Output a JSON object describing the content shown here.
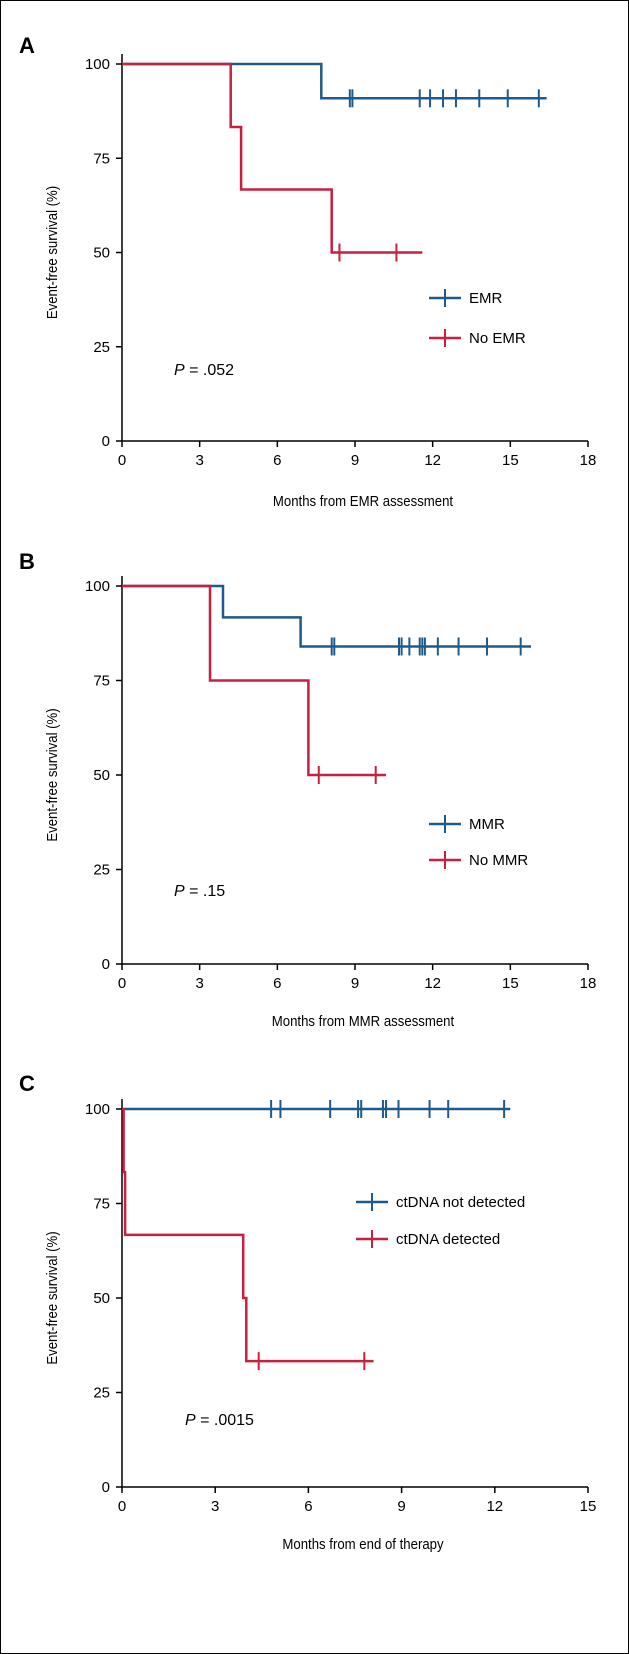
{
  "colors": {
    "blue": "#1f5a8c",
    "red": "#c8203f",
    "axis": "#000000"
  },
  "chart_data": [
    {
      "type": "line",
      "panel": "A",
      "xlabel": "Months from EMR assessment",
      "ylabel": "Event-free survival (%)",
      "xlim": [
        0,
        18
      ],
      "ylim": [
        0,
        100
      ],
      "xticks": [
        "0",
        "3",
        "6",
        "9",
        "12",
        "15",
        "18"
      ],
      "yticks": [
        "0",
        "25",
        "50",
        "75",
        "100"
      ],
      "pvalue": {
        "p": "P",
        "eq": "=",
        "value": ".052"
      },
      "legend_position": "center-right",
      "series": [
        {
          "name": "EMR",
          "color": "#1f5a8c",
          "steps": [
            [
              0,
              100
            ],
            [
              7.7,
              100
            ],
            [
              7.7,
              90.9
            ],
            [
              16.4,
              90.9
            ]
          ],
          "censors": [
            8.8,
            8.9,
            11.5,
            11.9,
            12.4,
            12.9,
            13.8,
            14.9,
            16.1
          ]
        },
        {
          "name": "No EMR",
          "color": "#c8203f",
          "steps": [
            [
              0,
              100
            ],
            [
              4.2,
              100
            ],
            [
              4.2,
              83.3
            ],
            [
              4.6,
              83.3
            ],
            [
              4.6,
              66.7
            ],
            [
              8.1,
              66.7
            ],
            [
              8.1,
              50
            ],
            [
              11.6,
              50
            ]
          ],
          "censors": [
            8.4,
            10.6
          ]
        }
      ]
    },
    {
      "type": "line",
      "panel": "B",
      "xlabel": "Months from MMR assessment",
      "ylabel": "Event-free survival (%)",
      "xlim": [
        0,
        18
      ],
      "ylim": [
        0,
        100
      ],
      "xticks": [
        "0",
        "3",
        "6",
        "9",
        "12",
        "15",
        "18"
      ],
      "yticks": [
        "0",
        "25",
        "50",
        "75",
        "100"
      ],
      "pvalue": {
        "p": "P",
        "eq": "=",
        "value": ".15"
      },
      "legend_position": "center-right",
      "series": [
        {
          "name": "MMR",
          "color": "#1f5a8c",
          "steps": [
            [
              0,
              100
            ],
            [
              3.9,
              100
            ],
            [
              3.9,
              91.7
            ],
            [
              6.9,
              91.7
            ],
            [
              6.9,
              84
            ],
            [
              15.8,
              84
            ]
          ],
          "censors": [
            8.1,
            8.2,
            10.7,
            10.8,
            11.1,
            11.5,
            11.6,
            11.7,
            12.2,
            13.0,
            14.1,
            15.4
          ]
        },
        {
          "name": "No MMR",
          "color": "#c8203f",
          "steps": [
            [
              0,
              100
            ],
            [
              3.4,
              100
            ],
            [
              3.4,
              75
            ],
            [
              7.2,
              75
            ],
            [
              7.2,
              50
            ],
            [
              10.2,
              50
            ]
          ],
          "censors": [
            7.6,
            9.8
          ]
        }
      ]
    },
    {
      "type": "line",
      "panel": "C",
      "xlabel": "Months from end of therapy",
      "ylabel": "Event-free survival (%)",
      "xlim": [
        0,
        15
      ],
      "ylim": [
        0,
        100
      ],
      "xticks": [
        "0",
        "3",
        "6",
        "9",
        "12",
        "15"
      ],
      "yticks": [
        "0",
        "25",
        "50",
        "75",
        "100"
      ],
      "pvalue": {
        "p": "P",
        "eq": "=",
        "value": ".0015"
      },
      "legend_position": "upper-right",
      "series": [
        {
          "name": "ctDNA not detected",
          "color": "#1f5a8c",
          "steps": [
            [
              0,
              100
            ],
            [
              12.5,
              100
            ]
          ],
          "censors": [
            4.8,
            5.1,
            6.7,
            7.6,
            7.7,
            8.4,
            8.5,
            8.9,
            9.9,
            10.5,
            12.3
          ]
        },
        {
          "name": "ctDNA detected",
          "color": "#c8203f",
          "steps": [
            [
              0,
              100
            ],
            [
              0.05,
              100
            ],
            [
              0.05,
              83.3
            ],
            [
              0.1,
              83.3
            ],
            [
              0.1,
              66.7
            ],
            [
              3.9,
              66.7
            ],
            [
              3.9,
              50
            ],
            [
              4.0,
              50
            ],
            [
              4.0,
              33.3
            ],
            [
              8.1,
              33.3
            ]
          ],
          "censors": [
            4.4,
            7.8
          ]
        }
      ]
    }
  ]
}
